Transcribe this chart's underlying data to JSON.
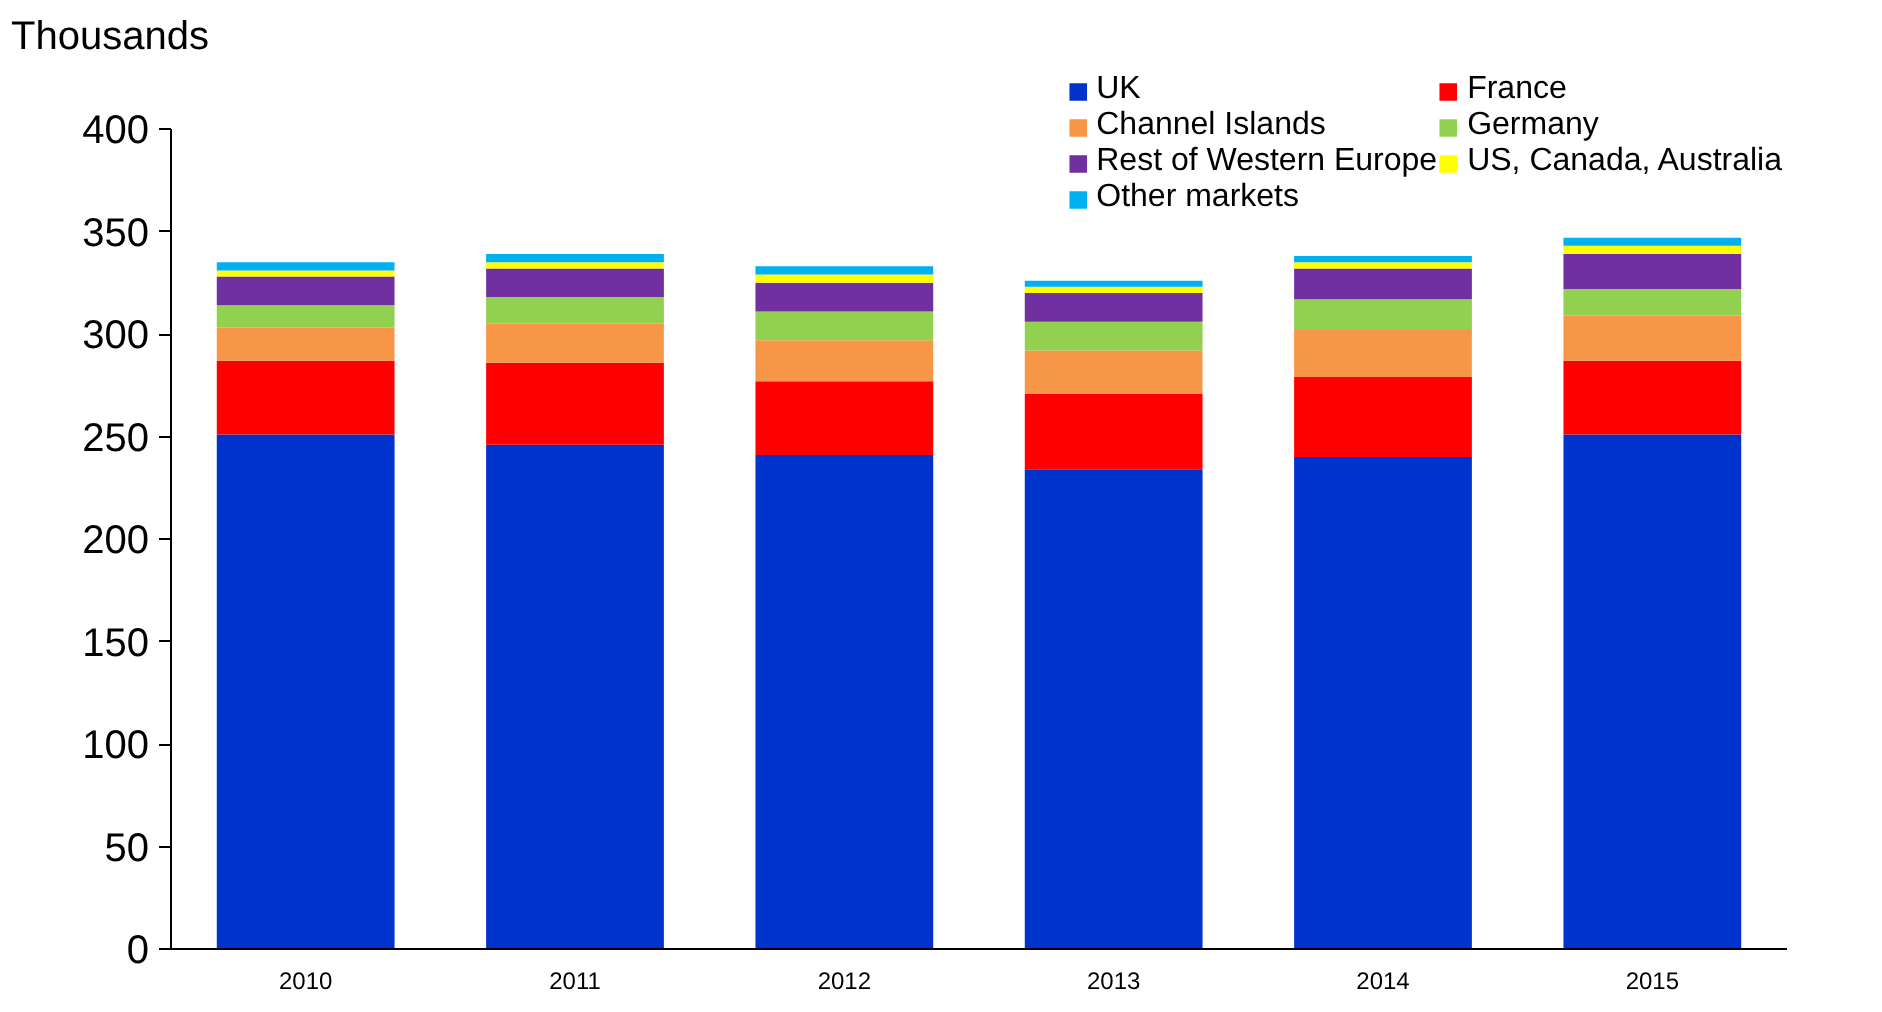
{
  "chart_data": {
    "type": "bar",
    "stacked": true,
    "ylabel": "Thousands",
    "categories": [
      "2010",
      "2011",
      "2012",
      "2013",
      "2014",
      "2015"
    ],
    "series": [
      {
        "name": "UK",
        "color": "#0033cc",
        "values": [
          251,
          246,
          241,
          234,
          240,
          251
        ]
      },
      {
        "name": "France",
        "color": "#ff0000",
        "values": [
          36,
          40,
          36,
          37,
          39,
          36
        ]
      },
      {
        "name": "Channel Islands",
        "color": "#f79646",
        "values": [
          16,
          19,
          20,
          21,
          23,
          22
        ]
      },
      {
        "name": "Germany",
        "color": "#92d050",
        "values": [
          11,
          13,
          14,
          14,
          15,
          13
        ]
      },
      {
        "name": "Rest of Western Europe",
        "color": "#7030a0",
        "values": [
          14,
          14,
          14,
          14,
          15,
          17
        ]
      },
      {
        "name": "US, Canada, Australia",
        "color": "#ffff00",
        "values": [
          3,
          3,
          4,
          3,
          3,
          4
        ]
      },
      {
        "name": "Other markets",
        "color": "#00b0f0",
        "values": [
          4,
          4,
          4,
          3,
          3,
          4
        ]
      }
    ],
    "ylim": [
      0,
      400
    ],
    "yticks": [
      0,
      50,
      100,
      150,
      200,
      250,
      300,
      350,
      400
    ],
    "grid": false,
    "legend": "top right"
  }
}
